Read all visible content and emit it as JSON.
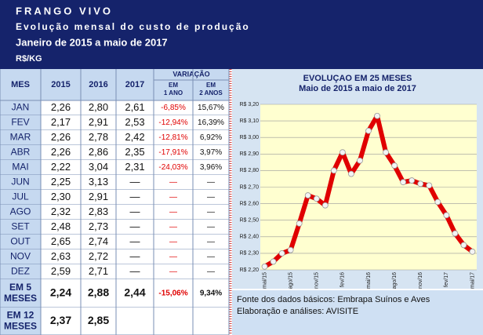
{
  "header": {
    "title": "FRANGO VIVO",
    "subtitle": "Evolução mensal do custo de produção",
    "period": "Janeiro de 2015 a maio de 2017",
    "unit": "R$/KG"
  },
  "table": {
    "columns": [
      "MES",
      "2015",
      "2016",
      "2017"
    ],
    "variation": "VARIAÇÃO",
    "variation_columns": [
      [
        "EM",
        "1 ANO"
      ],
      [
        "EM",
        "2 ANOS"
      ]
    ],
    "rows": [
      [
        "JAN",
        "2,26",
        "2,80",
        "2,61",
        "-6,85%",
        "15,67%"
      ],
      [
        "FEV",
        "2,17",
        "2,91",
        "2,53",
        "-12,94%",
        "16,39%"
      ],
      [
        "MAR",
        "2,26",
        "2,78",
        "2,42",
        "-12,81%",
        "6,92%"
      ],
      [
        "ABR",
        "2,26",
        "2,86",
        "2,35",
        "-17,91%",
        "3,97%"
      ],
      [
        "MAI",
        "2,22",
        "3,04",
        "2,31",
        "-24,03%",
        "3,96%"
      ],
      [
        "JUN",
        "2,25",
        "3,13",
        "—",
        "—",
        "—"
      ],
      [
        "JUL",
        "2,30",
        "2,91",
        "—",
        "—",
        "—"
      ],
      [
        "AGO",
        "2,32",
        "2,83",
        "—",
        "—",
        "—"
      ],
      [
        "SET",
        "2,48",
        "2,73",
        "—",
        "—",
        "—"
      ],
      [
        "OUT",
        "2,65",
        "2,74",
        "—",
        "—",
        "—"
      ],
      [
        "NOV",
        "2,63",
        "2,72",
        "—",
        "—",
        "—"
      ],
      [
        "DEZ",
        "2,59",
        "2,71",
        "—",
        "—",
        "—"
      ]
    ],
    "summary_rows": [
      [
        [
          "EM 5",
          "MESES"
        ],
        "2,24",
        "2,88",
        "2,44",
        "-15,06%",
        "9,34%"
      ],
      [
        [
          "EM 12",
          "MESES"
        ],
        "2,37",
        "2,85"
      ]
    ]
  },
  "chart_data": {
    "type": "line",
    "title": "EVOLUÇAO EM 25 MESES",
    "subtitle": "Maio de 2015 a maio de 2017",
    "categories": [
      "mai/15",
      null,
      null,
      "ago/15",
      null,
      null,
      "nov/15",
      null,
      null,
      "fev/16",
      null,
      null,
      "mai/16",
      null,
      null,
      "ago/16",
      null,
      null,
      "nov/16",
      null,
      null,
      "fev/17",
      null,
      null,
      "mai/17"
    ],
    "values": [
      2.22,
      2.25,
      2.3,
      2.32,
      2.48,
      2.65,
      2.63,
      2.59,
      2.8,
      2.91,
      2.78,
      2.86,
      3.04,
      3.13,
      2.91,
      2.83,
      2.73,
      2.74,
      2.72,
      2.71,
      2.61,
      2.53,
      2.42,
      2.35,
      2.31
    ],
    "color": "#e00000",
    "ylim": [
      2.2,
      3.2
    ],
    "yticks": [
      {
        "value": 2.2,
        "label": "R$ 2,20"
      },
      {
        "value": 2.3,
        "label": "R$ 2,30"
      },
      {
        "value": 2.4,
        "label": "R$ 2,40"
      },
      {
        "value": 2.5,
        "label": "R$ 2,50"
      },
      {
        "value": 2.6,
        "label": "R$ 2,60"
      },
      {
        "value": 2.7,
        "label": "R$ 2,70"
      },
      {
        "value": 2.8,
        "label": "R$ 2,80"
      },
      {
        "value": 2.9,
        "label": "R$ 2,90"
      },
      {
        "value": 3.0,
        "label": "R$ 3,00"
      },
      {
        "value": 3.1,
        "label": "R$ 3,10"
      },
      {
        "value": 3.2,
        "label": "R$ 3,20"
      }
    ],
    "grid": true
  },
  "footer": {
    "lines": [
      "Fonte dos dados básicos: Embrapa Suínos e Aves",
      "Elaboração e análises: AVISITE"
    ]
  }
}
